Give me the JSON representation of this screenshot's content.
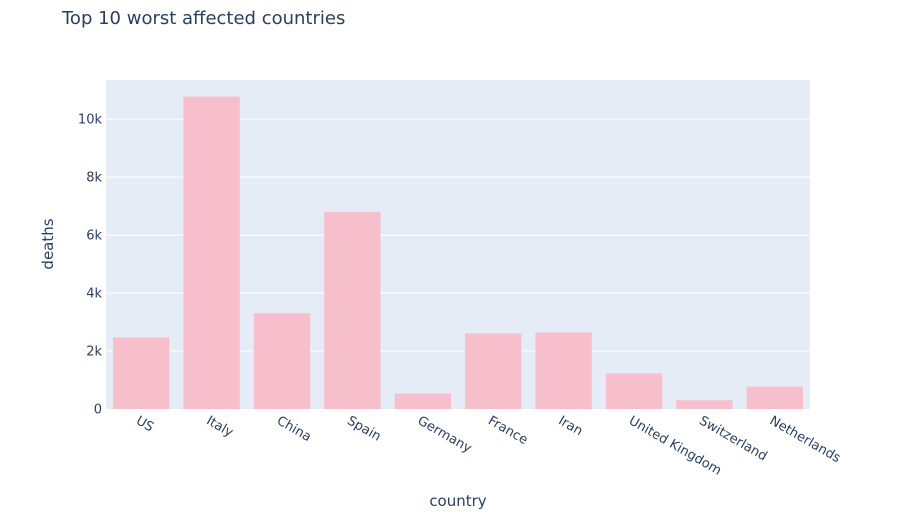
{
  "chart_data": {
    "type": "bar",
    "title": "Top 10 worst affected countries",
    "xlabel": "country",
    "ylabel": "deaths",
    "categories": [
      "US",
      "Italy",
      "China",
      "Spain",
      "Germany",
      "France",
      "Iran",
      "United Kingdom",
      "Switzerland",
      "Netherlands"
    ],
    "values": [
      2467,
      10779,
      3304,
      6803,
      533,
      2606,
      2640,
      1228,
      300,
      772
    ],
    "ylim": [
      0,
      11350
    ],
    "yticks": [
      0,
      2000,
      4000,
      6000,
      8000,
      10000
    ],
    "ytick_labels": [
      "0",
      "2k",
      "4k",
      "6k",
      "8k",
      "10k"
    ],
    "grid": true,
    "bar_color": "#f7bfcb",
    "plot_bg": "#e5ecf6"
  }
}
